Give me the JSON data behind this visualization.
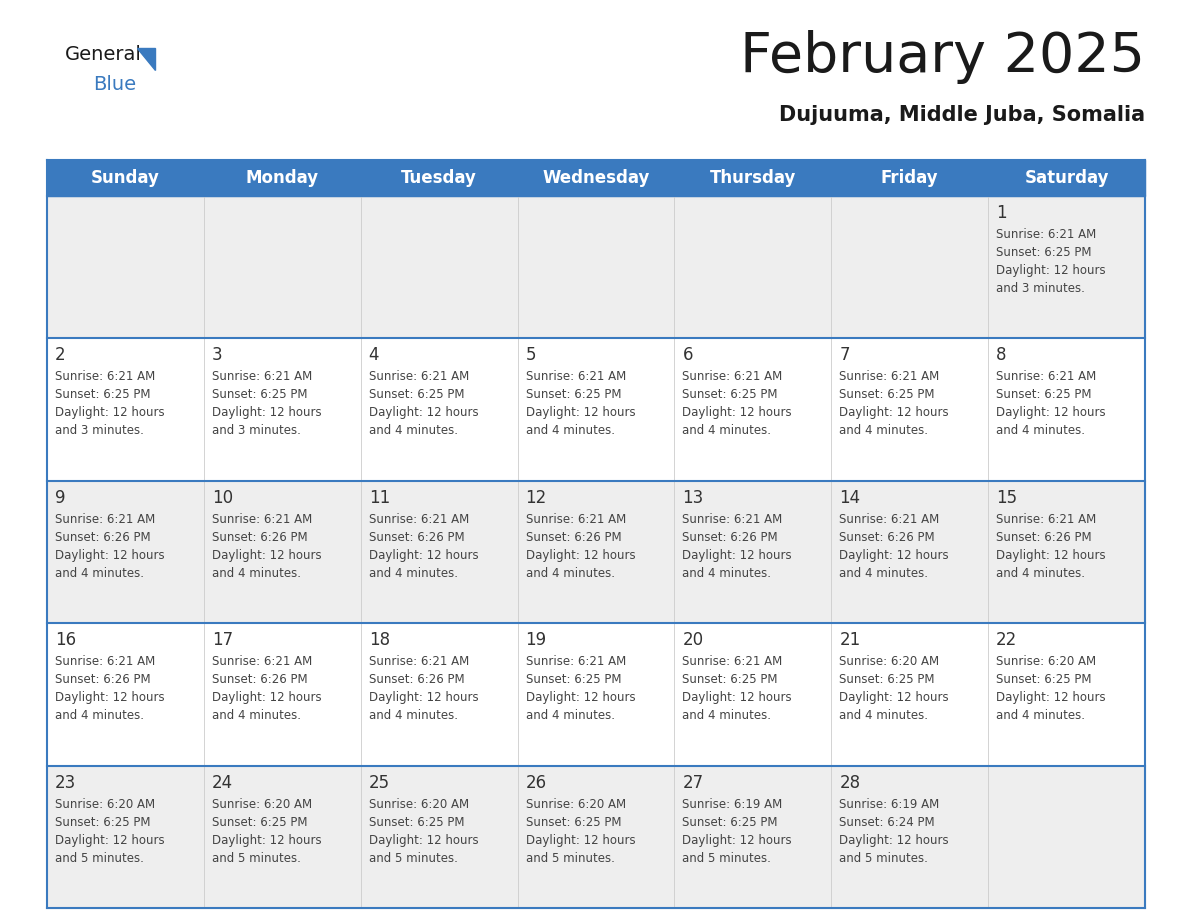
{
  "title": "February 2025",
  "subtitle": "Dujuuma, Middle Juba, Somalia",
  "header_color": "#3a7abf",
  "header_text_color": "#ffffff",
  "days_of_week": [
    "Sunday",
    "Monday",
    "Tuesday",
    "Wednesday",
    "Thursday",
    "Friday",
    "Saturday"
  ],
  "bg_color": "#ffffff",
  "cell_bg_light": "#eeeeee",
  "cell_bg_white": "#ffffff",
  "border_color": "#3a7abf",
  "day_number_color": "#333333",
  "text_color": "#444444",
  "calendar": [
    [
      null,
      null,
      null,
      null,
      null,
      null,
      {
        "day": 1,
        "sunrise": "6:21 AM",
        "sunset": "6:25 PM",
        "daylight": "12 hours and 3 minutes."
      }
    ],
    [
      {
        "day": 2,
        "sunrise": "6:21 AM",
        "sunset": "6:25 PM",
        "daylight": "12 hours and 3 minutes."
      },
      {
        "day": 3,
        "sunrise": "6:21 AM",
        "sunset": "6:25 PM",
        "daylight": "12 hours and 3 minutes."
      },
      {
        "day": 4,
        "sunrise": "6:21 AM",
        "sunset": "6:25 PM",
        "daylight": "12 hours and 4 minutes."
      },
      {
        "day": 5,
        "sunrise": "6:21 AM",
        "sunset": "6:25 PM",
        "daylight": "12 hours and 4 minutes."
      },
      {
        "day": 6,
        "sunrise": "6:21 AM",
        "sunset": "6:25 PM",
        "daylight": "12 hours and 4 minutes."
      },
      {
        "day": 7,
        "sunrise": "6:21 AM",
        "sunset": "6:25 PM",
        "daylight": "12 hours and 4 minutes."
      },
      {
        "day": 8,
        "sunrise": "6:21 AM",
        "sunset": "6:25 PM",
        "daylight": "12 hours and 4 minutes."
      }
    ],
    [
      {
        "day": 9,
        "sunrise": "6:21 AM",
        "sunset": "6:26 PM",
        "daylight": "12 hours and 4 minutes."
      },
      {
        "day": 10,
        "sunrise": "6:21 AM",
        "sunset": "6:26 PM",
        "daylight": "12 hours and 4 minutes."
      },
      {
        "day": 11,
        "sunrise": "6:21 AM",
        "sunset": "6:26 PM",
        "daylight": "12 hours and 4 minutes."
      },
      {
        "day": 12,
        "sunrise": "6:21 AM",
        "sunset": "6:26 PM",
        "daylight": "12 hours and 4 minutes."
      },
      {
        "day": 13,
        "sunrise": "6:21 AM",
        "sunset": "6:26 PM",
        "daylight": "12 hours and 4 minutes."
      },
      {
        "day": 14,
        "sunrise": "6:21 AM",
        "sunset": "6:26 PM",
        "daylight": "12 hours and 4 minutes."
      },
      {
        "day": 15,
        "sunrise": "6:21 AM",
        "sunset": "6:26 PM",
        "daylight": "12 hours and 4 minutes."
      }
    ],
    [
      {
        "day": 16,
        "sunrise": "6:21 AM",
        "sunset": "6:26 PM",
        "daylight": "12 hours and 4 minutes."
      },
      {
        "day": 17,
        "sunrise": "6:21 AM",
        "sunset": "6:26 PM",
        "daylight": "12 hours and 4 minutes."
      },
      {
        "day": 18,
        "sunrise": "6:21 AM",
        "sunset": "6:26 PM",
        "daylight": "12 hours and 4 minutes."
      },
      {
        "day": 19,
        "sunrise": "6:21 AM",
        "sunset": "6:25 PM",
        "daylight": "12 hours and 4 minutes."
      },
      {
        "day": 20,
        "sunrise": "6:21 AM",
        "sunset": "6:25 PM",
        "daylight": "12 hours and 4 minutes."
      },
      {
        "day": 21,
        "sunrise": "6:20 AM",
        "sunset": "6:25 PM",
        "daylight": "12 hours and 4 minutes."
      },
      {
        "day": 22,
        "sunrise": "6:20 AM",
        "sunset": "6:25 PM",
        "daylight": "12 hours and 4 minutes."
      }
    ],
    [
      {
        "day": 23,
        "sunrise": "6:20 AM",
        "sunset": "6:25 PM",
        "daylight": "12 hours and 5 minutes."
      },
      {
        "day": 24,
        "sunrise": "6:20 AM",
        "sunset": "6:25 PM",
        "daylight": "12 hours and 5 minutes."
      },
      {
        "day": 25,
        "sunrise": "6:20 AM",
        "sunset": "6:25 PM",
        "daylight": "12 hours and 5 minutes."
      },
      {
        "day": 26,
        "sunrise": "6:20 AM",
        "sunset": "6:25 PM",
        "daylight": "12 hours and 5 minutes."
      },
      {
        "day": 27,
        "sunrise": "6:19 AM",
        "sunset": "6:25 PM",
        "daylight": "12 hours and 5 minutes."
      },
      {
        "day": 28,
        "sunrise": "6:19 AM",
        "sunset": "6:24 PM",
        "daylight": "12 hours and 5 minutes."
      },
      null
    ]
  ]
}
